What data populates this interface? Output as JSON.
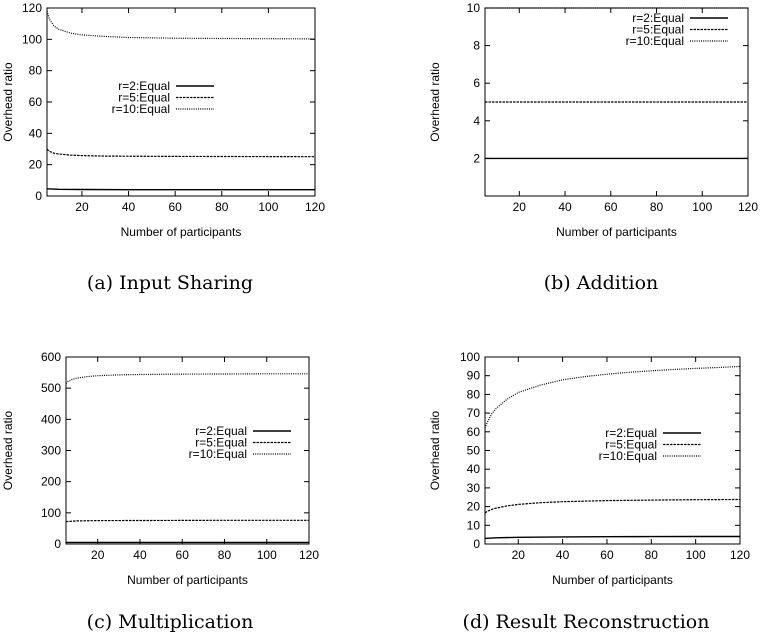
{
  "chart_data": [
    {
      "type": "line",
      "caption": "(a) Input Sharing",
      "xlabel": "Number of participants",
      "ylabel": "Overhead ratio",
      "xlim": [
        5,
        120
      ],
      "ylim": [
        0,
        120
      ],
      "xticks": [
        20,
        40,
        60,
        80,
        100,
        120
      ],
      "yticks": [
        0,
        20,
        40,
        60,
        80,
        100,
        120
      ],
      "legend_position": "center-left",
      "series": [
        {
          "name": "r=2:Equal",
          "style": "solid",
          "points": [
            [
              5,
              4.6
            ],
            [
              10,
              4.3
            ],
            [
              20,
              4.15
            ],
            [
              40,
              4.05
            ],
            [
              60,
              4.02
            ],
            [
              80,
              4.0
            ],
            [
              100,
              4.0
            ],
            [
              120,
              4.0
            ]
          ]
        },
        {
          "name": "r=5:Equal",
          "style": "dashed",
          "points": [
            [
              5,
              30
            ],
            [
              6,
              28.5
            ],
            [
              8,
              27.3
            ],
            [
              10,
              26.8
            ],
            [
              15,
              26.1
            ],
            [
              20,
              25.8
            ],
            [
              30,
              25.5
            ],
            [
              40,
              25.4
            ],
            [
              60,
              25.25
            ],
            [
              80,
              25.2
            ],
            [
              100,
              25.15
            ],
            [
              120,
              25.1
            ]
          ]
        },
        {
          "name": "r=10:Equal",
          "style": "dotted",
          "points": [
            [
              5,
              118
            ],
            [
              6,
              113
            ],
            [
              8,
              108.5
            ],
            [
              10,
              106.5
            ],
            [
              15,
              104
            ],
            [
              20,
              102.8
            ],
            [
              30,
              101.8
            ],
            [
              40,
              101.2
            ],
            [
              60,
              100.7
            ],
            [
              80,
              100.5
            ],
            [
              100,
              100.4
            ],
            [
              120,
              100.3
            ]
          ]
        }
      ]
    },
    {
      "type": "line",
      "caption": "(b) Addition",
      "xlabel": "Number of participants",
      "ylabel": "Overhead ratio",
      "xlim": [
        5,
        120
      ],
      "ylim": [
        0,
        10
      ],
      "xticks": [
        20,
        40,
        60,
        80,
        100,
        120
      ],
      "yticks": [
        2,
        4,
        6,
        8,
        10
      ],
      "legend_position": "top-right",
      "series": [
        {
          "name": "r=2:Equal",
          "style": "solid",
          "points": [
            [
              5,
              2
            ],
            [
              120,
              2
            ]
          ]
        },
        {
          "name": "r=5:Equal",
          "style": "dashed",
          "points": [
            [
              5,
              5
            ],
            [
              120,
              5
            ]
          ]
        },
        {
          "name": "r=10:Equal",
          "style": "dotted",
          "points": [
            [
              5,
              10
            ],
            [
              120,
              10
            ]
          ]
        }
      ]
    },
    {
      "type": "line",
      "caption": "(c) Multiplication",
      "xlabel": "Number of participants",
      "ylabel": "Overhead ratio",
      "xlim": [
        5,
        120
      ],
      "ylim": [
        0,
        600
      ],
      "xticks": [
        20,
        40,
        60,
        80,
        100,
        120
      ],
      "yticks": [
        0,
        100,
        200,
        300,
        400,
        500,
        600
      ],
      "legend_position": "center-right",
      "series": [
        {
          "name": "r=2:Equal",
          "style": "solid",
          "points": [
            [
              5,
              5
            ],
            [
              120,
              5
            ]
          ]
        },
        {
          "name": "r=5:Equal",
          "style": "dashed",
          "points": [
            [
              5,
              72
            ],
            [
              10,
              74
            ],
            [
              20,
              75
            ],
            [
              40,
              75.5
            ],
            [
              80,
              76
            ],
            [
              120,
              76
            ]
          ]
        },
        {
          "name": "r=10:Equal",
          "style": "dotted",
          "points": [
            [
              5,
              515
            ],
            [
              6,
              521
            ],
            [
              8,
              528
            ],
            [
              10,
              532
            ],
            [
              15,
              537
            ],
            [
              20,
              540
            ],
            [
              30,
              542.5
            ],
            [
              40,
              544
            ],
            [
              60,
              545
            ],
            [
              80,
              545.5
            ],
            [
              100,
              546
            ],
            [
              120,
              546
            ]
          ]
        }
      ]
    },
    {
      "type": "line",
      "caption": "(d) Result Reconstruction",
      "xlabel": "Number of participants",
      "ylabel": "Overhead ratio",
      "xlim": [
        5,
        120
      ],
      "ylim": [
        0,
        100
      ],
      "xticks": [
        20,
        40,
        60,
        80,
        100,
        120
      ],
      "yticks": [
        0,
        10,
        20,
        30,
        40,
        50,
        60,
        70,
        80,
        90,
        100
      ],
      "legend_position": "center-right",
      "series": [
        {
          "name": "r=2:Equal",
          "style": "solid",
          "points": [
            [
              5,
              3
            ],
            [
              10,
              3.3
            ],
            [
              20,
              3.6
            ],
            [
              40,
              3.8
            ],
            [
              60,
              3.9
            ],
            [
              80,
              3.95
            ],
            [
              100,
              4.0
            ],
            [
              120,
              4.0
            ]
          ]
        },
        {
          "name": "r=5:Equal",
          "style": "dashed",
          "points": [
            [
              5,
              16.5
            ],
            [
              6,
              17.5
            ],
            [
              8,
              18.5
            ],
            [
              10,
              19.2
            ],
            [
              15,
              20.4
            ],
            [
              20,
              21.2
            ],
            [
              30,
              22.1
            ],
            [
              40,
              22.6
            ],
            [
              60,
              23.2
            ],
            [
              80,
              23.5
            ],
            [
              100,
              23.7
            ],
            [
              120,
              23.8
            ]
          ]
        },
        {
          "name": "r=10:Equal",
          "style": "dotted",
          "points": [
            [
              5,
              62
            ],
            [
              6,
              65
            ],
            [
              8,
              69.5
            ],
            [
              10,
              72.5
            ],
            [
              15,
              77.5
            ],
            [
              20,
              81
            ],
            [
              30,
              85
            ],
            [
              40,
              87.8
            ],
            [
              50,
              89.5
            ],
            [
              60,
              90.8
            ],
            [
              70,
              91.8
            ],
            [
              80,
              92.6
            ],
            [
              90,
              93.3
            ],
            [
              100,
              93.9
            ],
            [
              110,
              94.4
            ],
            [
              120,
              94.9
            ]
          ]
        }
      ]
    }
  ]
}
